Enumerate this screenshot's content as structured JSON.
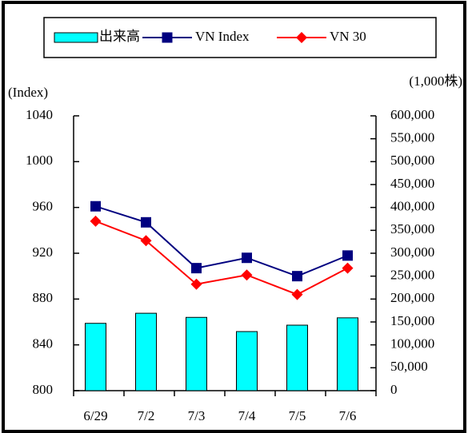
{
  "chart_data": {
    "type": "bar",
    "categories": [
      "6/29",
      "7/2",
      "7/3",
      "7/4",
      "7/5",
      "7/6"
    ],
    "ylabel": "(Index)",
    "y2label": "(1,000株)",
    "ylim": [
      800,
      1040
    ],
    "yticks": [
      800,
      840,
      880,
      920,
      960,
      1000,
      1040
    ],
    "y2lim": [
      0,
      600000
    ],
    "y2ticks": [
      0,
      {
        "value": 50000,
        "label": "50,000"
      },
      {
        "value": 100000,
        "label": "100,000"
      },
      {
        "value": 150000,
        "label": "150,000"
      },
      {
        "value": 200000,
        "label": "200,000"
      },
      {
        "value": 250000,
        "label": "250,000"
      },
      {
        "value": 300000,
        "label": "300,000"
      },
      {
        "value": 350000,
        "label": "350,000"
      },
      {
        "value": 400000,
        "label": "400,000"
      },
      {
        "value": 450000,
        "label": "450,000"
      },
      {
        "value": 500000,
        "label": "500,000"
      },
      {
        "value": 550000,
        "label": "550,000"
      },
      {
        "value": 600000,
        "label": "600,000"
      }
    ],
    "legend": "top",
    "series": [
      {
        "name": "出来高",
        "type": "bar",
        "axis": "y2",
        "color": "#00ffff",
        "values": [
          147000,
          169000,
          160000,
          129000,
          143000,
          159000
        ]
      },
      {
        "name": "VN Index",
        "type": "line",
        "marker": "square",
        "color": "#000080",
        "values": [
          961,
          947,
          907,
          916,
          900,
          918
        ]
      },
      {
        "name": "VN 30",
        "type": "line",
        "marker": "diamond",
        "color": "#ff0000",
        "values": [
          948,
          931,
          893,
          901,
          884,
          907
        ]
      }
    ]
  }
}
